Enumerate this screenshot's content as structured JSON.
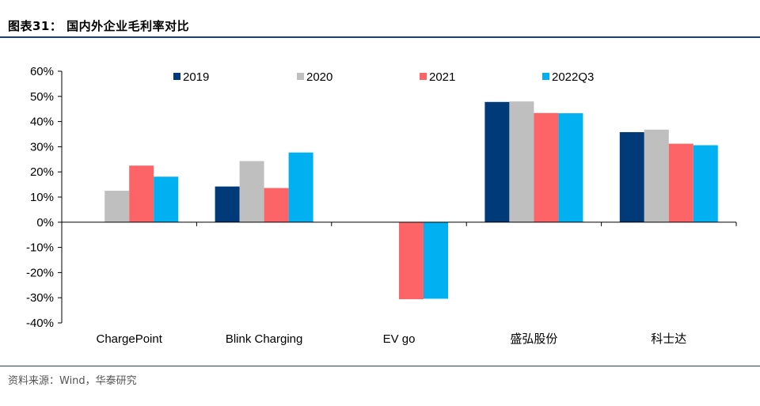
{
  "figure": {
    "title": "图表31：  国内外企业毛利率对比",
    "source": "资料来源：Wind，华泰研究"
  },
  "chart_data": {
    "type": "bar",
    "title": "",
    "xlabel": "",
    "ylabel": "",
    "ylim": [
      -40,
      60
    ],
    "yticks": [
      60,
      50,
      40,
      30,
      20,
      10,
      0,
      -10,
      -20,
      -30,
      -40
    ],
    "ytick_labels": [
      "60%",
      "50%",
      "40%",
      "30%",
      "20%",
      "10%",
      "0%",
      "-10%",
      "-20%",
      "-30%",
      "-40%"
    ],
    "categories": [
      "ChargePoint",
      "Blink Charging",
      "EV go",
      "盛弘股份",
      "科士达"
    ],
    "series": [
      {
        "name": "2019",
        "color": "#003a78",
        "values": [
          null,
          14.2,
          null,
          47.8,
          35.8
        ]
      },
      {
        "name": "2020",
        "color": "#bfbfbf",
        "values": [
          12.5,
          24.3,
          null,
          48.0,
          36.8
        ]
      },
      {
        "name": "2021",
        "color": "#fc6468",
        "values": [
          22.5,
          13.6,
          -30.6,
          43.4,
          31.2
        ]
      },
      {
        "name": "2022Q3",
        "color": "#00b0f0",
        "values": [
          18.1,
          27.7,
          -30.4,
          43.3,
          30.6
        ]
      }
    ],
    "legend_position": "top",
    "grid": false
  }
}
